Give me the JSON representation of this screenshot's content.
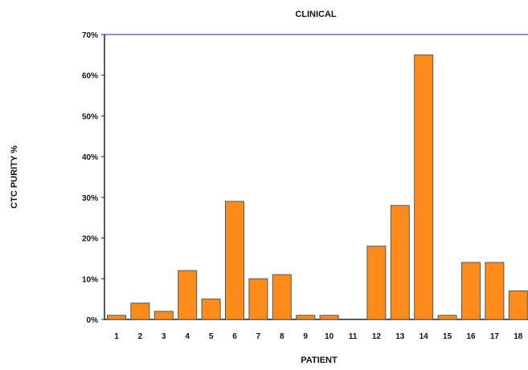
{
  "chart_data": {
    "type": "bar",
    "title": "CLINICAL",
    "xlabel": "PATIENT",
    "ylabel": "CTC PURITY %",
    "categories": [
      "1",
      "2",
      "3",
      "4",
      "5",
      "6",
      "7",
      "8",
      "9",
      "10",
      "11",
      "12",
      "13",
      "14",
      "15",
      "16",
      "17",
      "18"
    ],
    "values": [
      1,
      4,
      2,
      12,
      5,
      29,
      10,
      11,
      1,
      1,
      0,
      18,
      28,
      65,
      1,
      14,
      14,
      7
    ],
    "ylim": [
      0,
      70
    ],
    "yticks": [
      "0%",
      "10%",
      "20%",
      "30%",
      "40%",
      "50%",
      "60%",
      "70%"
    ],
    "grid": false,
    "legend": "none",
    "colors": {
      "bar_fill": "#ff8c1a",
      "bar_stroke": "#555555",
      "frame": "#6b6bd6",
      "axis": "#222222"
    }
  }
}
